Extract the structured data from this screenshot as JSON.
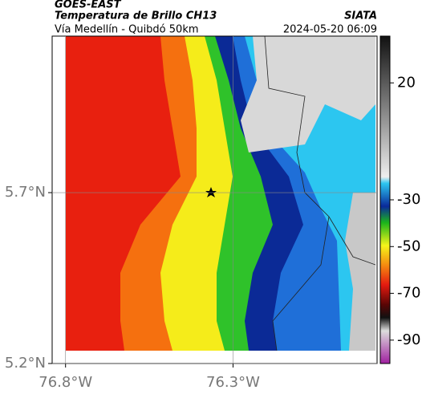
{
  "header": {
    "satellite": "GOES-EAST",
    "title": "Temperatura de Brillo CH13",
    "subtitle": "Vía Medellín - Quibdó 50km",
    "source": "SIATA",
    "datetime": "2024-05-20 06:09"
  },
  "map": {
    "xlim": [
      -76.84,
      -75.87
    ],
    "ylim": [
      5.2,
      6.158
    ],
    "xticks": [
      {
        "value": -76.8,
        "label": "76.8°W"
      },
      {
        "value": -76.3,
        "label": "76.3°W"
      }
    ],
    "yticks": [
      {
        "value": 5.7,
        "label": "5.7°N"
      },
      {
        "value": 5.2,
        "label": "5.2°N"
      }
    ]
  },
  "colorbar": {
    "lim": [
      40,
      -100
    ],
    "ticks": [
      20,
      -30,
      -50,
      -70,
      -90
    ]
  }
}
